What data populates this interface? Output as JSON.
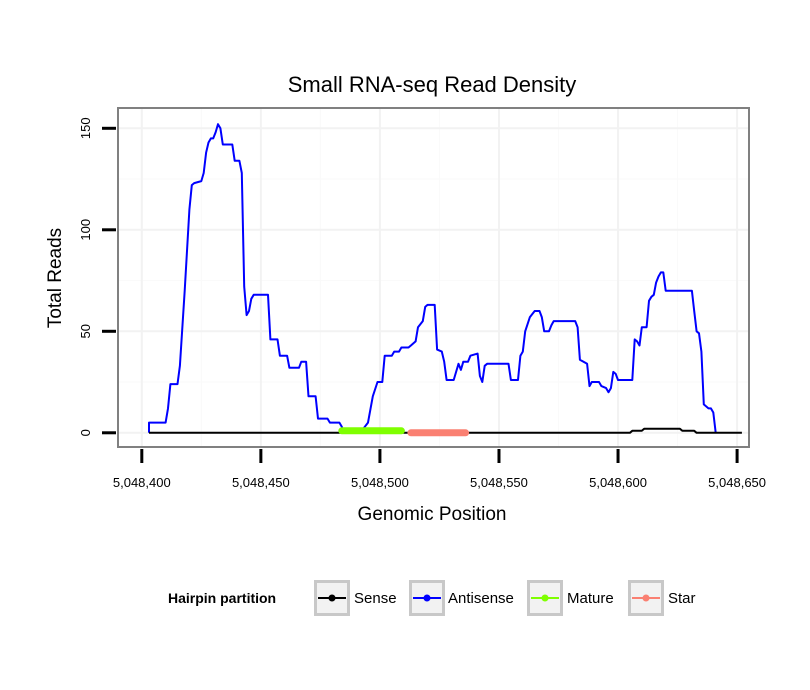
{
  "chart_data": {
    "type": "line",
    "title": "Small RNA-seq Read Density",
    "xlabel": "Genomic Position",
    "ylabel": "Total Reads",
    "xlim": [
      5048390,
      5048655
    ],
    "ylim": [
      -7,
      160
    ],
    "x_ticks": [
      5048400,
      5048450,
      5048500,
      5048550,
      5048600,
      5048650
    ],
    "x_tick_labels": [
      "5,048,400",
      "5,048,450",
      "5,048,500",
      "5,048,550",
      "5,048,600",
      "5,048,650"
    ],
    "y_ticks": [
      0,
      50,
      100,
      150
    ],
    "y_tick_labels": [
      "0",
      "50",
      "100",
      "150"
    ],
    "grid": true,
    "legend": {
      "title": "Hairpin partition",
      "position": "bottom",
      "entries": [
        "Sense",
        "Antisense",
        "Mature",
        "Star"
      ]
    },
    "series": [
      {
        "name": "Antisense",
        "color": "#0000ff",
        "points": [
          [
            5048403,
            0
          ],
          [
            5048403,
            5
          ],
          [
            5048410,
            5
          ],
          [
            5048411,
            12
          ],
          [
            5048412,
            24
          ],
          [
            5048415,
            24
          ],
          [
            5048416,
            33
          ],
          [
            5048418,
            70
          ],
          [
            5048420,
            110
          ],
          [
            5048421,
            122
          ],
          [
            5048422,
            123
          ],
          [
            5048425,
            124
          ],
          [
            5048426,
            128
          ],
          [
            5048427,
            138
          ],
          [
            5048428,
            143
          ],
          [
            5048429,
            145
          ],
          [
            5048430,
            145
          ],
          [
            5048431,
            148
          ],
          [
            5048432,
            152
          ],
          [
            5048433,
            150
          ],
          [
            5048434,
            142
          ],
          [
            5048438,
            142
          ],
          [
            5048439,
            134
          ],
          [
            5048441,
            134
          ],
          [
            5048442,
            128
          ],
          [
            5048443,
            72
          ],
          [
            5048444,
            58
          ],
          [
            5048445,
            60
          ],
          [
            5048446,
            66
          ],
          [
            5048447,
            68
          ],
          [
            5048453,
            68
          ],
          [
            5048454,
            46
          ],
          [
            5048457,
            46
          ],
          [
            5048458,
            38
          ],
          [
            5048461,
            38
          ],
          [
            5048462,
            32
          ],
          [
            5048466,
            32
          ],
          [
            5048467,
            35
          ],
          [
            5048469,
            35
          ],
          [
            5048470,
            18
          ],
          [
            5048473,
            18
          ],
          [
            5048474,
            7
          ],
          [
            5048478,
            7
          ],
          [
            5048479,
            5
          ],
          [
            5048483,
            5
          ],
          [
            5048484,
            3
          ],
          [
            5048485,
            0
          ],
          [
            5048492,
            0
          ],
          [
            5048493,
            2
          ],
          [
            5048495,
            5
          ],
          [
            5048497,
            18
          ],
          [
            5048499,
            25
          ],
          [
            5048501,
            25
          ],
          [
            5048502,
            38
          ],
          [
            5048505,
            38
          ],
          [
            5048506,
            40
          ],
          [
            5048508,
            40
          ],
          [
            5048509,
            42
          ],
          [
            5048512,
            42
          ],
          [
            5048513,
            43
          ],
          [
            5048515,
            45
          ],
          [
            5048516,
            52
          ],
          [
            5048518,
            55
          ],
          [
            5048519,
            62
          ],
          [
            5048520,
            63
          ],
          [
            5048523,
            63
          ],
          [
            5048524,
            41
          ],
          [
            5048526,
            40
          ],
          [
            5048527,
            35
          ],
          [
            5048528,
            26
          ],
          [
            5048531,
            26
          ],
          [
            5048532,
            30
          ],
          [
            5048533,
            34
          ],
          [
            5048534,
            31
          ],
          [
            5048535,
            35
          ],
          [
            5048537,
            35
          ],
          [
            5048538,
            38
          ],
          [
            5048541,
            39
          ],
          [
            5048542,
            28
          ],
          [
            5048543,
            25
          ],
          [
            5048544,
            33
          ],
          [
            5048545,
            34
          ],
          [
            5048554,
            34
          ],
          [
            5048555,
            26
          ],
          [
            5048558,
            26
          ],
          [
            5048559,
            38
          ],
          [
            5048560,
            40
          ],
          [
            5048561,
            50
          ],
          [
            5048563,
            57
          ],
          [
            5048565,
            60
          ],
          [
            5048567,
            60
          ],
          [
            5048568,
            57
          ],
          [
            5048569,
            50
          ],
          [
            5048571,
            50
          ],
          [
            5048572,
            53
          ],
          [
            5048573,
            55
          ],
          [
            5048582,
            55
          ],
          [
            5048583,
            52
          ],
          [
            5048584,
            36
          ],
          [
            5048587,
            34
          ],
          [
            5048588,
            23
          ],
          [
            5048589,
            25
          ],
          [
            5048592,
            25
          ],
          [
            5048593,
            23
          ],
          [
            5048595,
            22
          ],
          [
            5048596,
            20
          ],
          [
            5048597,
            22
          ],
          [
            5048598,
            30
          ],
          [
            5048599,
            29
          ],
          [
            5048600,
            26
          ],
          [
            5048606,
            26
          ],
          [
            5048607,
            46
          ],
          [
            5048608,
            45
          ],
          [
            5048609,
            43
          ],
          [
            5048610,
            52
          ],
          [
            5048612,
            52
          ],
          [
            5048613,
            65
          ],
          [
            5048614,
            67
          ],
          [
            5048615,
            68
          ],
          [
            5048616,
            74
          ],
          [
            5048617,
            77
          ],
          [
            5048618,
            79
          ],
          [
            5048619,
            79
          ],
          [
            5048620,
            70
          ],
          [
            5048631,
            70
          ],
          [
            5048632,
            60
          ],
          [
            5048633,
            50
          ],
          [
            5048634,
            49
          ],
          [
            5048635,
            40
          ],
          [
            5048636,
            14
          ],
          [
            5048638,
            12
          ],
          [
            5048639,
            12
          ],
          [
            5048640,
            10
          ],
          [
            5048641,
            0
          ]
        ]
      },
      {
        "name": "Sense",
        "color": "#000000",
        "points": [
          [
            5048403,
            0
          ],
          [
            5048605,
            0
          ],
          [
            5048606,
            1
          ],
          [
            5048610,
            1
          ],
          [
            5048611,
            2
          ],
          [
            5048626,
            2
          ],
          [
            5048627,
            1
          ],
          [
            5048632,
            1
          ],
          [
            5048633,
            0
          ],
          [
            5048652,
            0
          ]
        ]
      },
      {
        "name": "Mature",
        "color": "#7fff00",
        "points": [
          [
            5048484,
            1
          ],
          [
            5048509,
            1
          ]
        ]
      },
      {
        "name": "Star",
        "color": "#fa8072",
        "points": [
          [
            5048513,
            0
          ],
          [
            5048536,
            0
          ]
        ]
      }
    ]
  }
}
